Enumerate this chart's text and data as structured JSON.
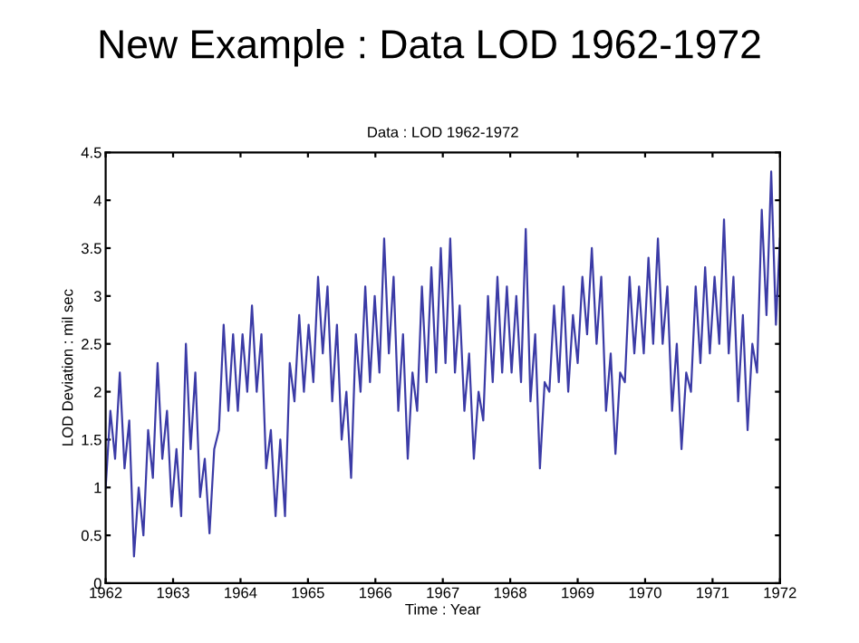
{
  "chart_data": {
    "type": "line",
    "title": "New Example : Data LOD 1962-1972",
    "subtitle": "Data : LOD 1962-1972",
    "xlabel": "Time : Year",
    "ylabel": "LOD Deviation : mil sec",
    "xlim": [
      1962,
      1972
    ],
    "ylim": [
      0,
      4.5
    ],
    "xticks": [
      1962,
      1963,
      1964,
      1965,
      1966,
      1967,
      1968,
      1969,
      1970,
      1971,
      1972
    ],
    "yticks": [
      0,
      0.5,
      1,
      1.5,
      2,
      2.5,
      3,
      3.5,
      4,
      4.5
    ],
    "grid": false,
    "legend": false,
    "series": [
      {
        "color": "#3b3ba6",
        "x": [
          1962.0,
          1962.07,
          1962.14,
          1962.21,
          1962.28,
          1962.35,
          1962.42,
          1962.49,
          1962.56,
          1962.63,
          1962.7,
          1962.77,
          1962.84,
          1962.91,
          1962.98,
          1963.05,
          1963.12,
          1963.19,
          1963.26,
          1963.33,
          1963.4,
          1963.47,
          1963.54,
          1963.61,
          1963.68,
          1963.75,
          1963.82,
          1963.89,
          1963.96,
          1964.03,
          1964.1,
          1964.17,
          1964.24,
          1964.31,
          1964.38,
          1964.45,
          1964.52,
          1964.59,
          1964.66,
          1964.73,
          1964.8,
          1964.87,
          1964.94,
          1965.01,
          1965.08,
          1965.15,
          1965.22,
          1965.29,
          1965.36,
          1965.43,
          1965.5,
          1965.57,
          1965.64,
          1965.71,
          1965.78,
          1965.85,
          1965.92,
          1965.99,
          1966.06,
          1966.13,
          1966.2,
          1966.27,
          1966.34,
          1966.41,
          1966.48,
          1966.55,
          1966.62,
          1966.69,
          1966.76,
          1966.83,
          1966.9,
          1966.97,
          1967.04,
          1967.11,
          1967.18,
          1967.25,
          1967.32,
          1967.39,
          1967.46,
          1967.53,
          1967.6,
          1967.67,
          1967.74,
          1967.81,
          1967.88,
          1967.95,
          1968.02,
          1968.09,
          1968.16,
          1968.23,
          1968.3,
          1968.37,
          1968.44,
          1968.51,
          1968.58,
          1968.65,
          1968.72,
          1968.79,
          1968.86,
          1968.93,
          1969.0,
          1969.07,
          1969.14,
          1969.21,
          1969.28,
          1969.35,
          1969.42,
          1969.49,
          1969.56,
          1969.63,
          1969.7,
          1969.77,
          1969.84,
          1969.91,
          1969.98,
          1970.05,
          1970.12,
          1970.19,
          1970.26,
          1970.33,
          1970.4,
          1970.47,
          1970.54,
          1970.61,
          1970.68,
          1970.75,
          1970.82,
          1970.89,
          1970.96,
          1971.03,
          1971.1,
          1971.17,
          1971.24,
          1971.31,
          1971.38,
          1971.45,
          1971.52,
          1971.59,
          1971.66,
          1971.73,
          1971.8,
          1971.87,
          1971.94,
          1972.0
        ],
        "values": [
          1.0,
          1.8,
          1.3,
          2.2,
          1.2,
          1.7,
          0.28,
          1.0,
          0.5,
          1.6,
          1.1,
          2.3,
          1.3,
          1.8,
          0.8,
          1.4,
          0.7,
          2.5,
          1.4,
          2.2,
          0.9,
          1.3,
          0.52,
          1.4,
          1.6,
          2.7,
          1.8,
          2.6,
          1.8,
          2.6,
          2.0,
          2.9,
          2.0,
          2.6,
          1.2,
          1.6,
          0.7,
          1.5,
          0.7,
          2.3,
          1.9,
          2.8,
          2.0,
          2.7,
          2.1,
          3.2,
          2.4,
          3.1,
          1.9,
          2.7,
          1.5,
          2.0,
          1.1,
          2.6,
          2.0,
          3.1,
          2.1,
          3.0,
          2.2,
          3.6,
          2.4,
          3.2,
          1.8,
          2.6,
          1.3,
          2.2,
          1.8,
          3.1,
          2.1,
          3.3,
          2.2,
          3.5,
          2.3,
          3.6,
          2.2,
          2.9,
          1.8,
          2.4,
          1.3,
          2.0,
          1.7,
          3.0,
          2.1,
          3.2,
          2.2,
          3.1,
          2.2,
          3.0,
          2.1,
          3.7,
          1.9,
          2.6,
          1.2,
          2.1,
          2.0,
          2.9,
          2.1,
          3.1,
          2.0,
          2.8,
          2.3,
          3.2,
          2.6,
          3.5,
          2.5,
          3.2,
          1.8,
          2.4,
          1.35,
          2.2,
          2.1,
          3.2,
          2.4,
          3.1,
          2.4,
          3.4,
          2.5,
          3.6,
          2.5,
          3.1,
          1.8,
          2.5,
          1.4,
          2.2,
          2.0,
          3.1,
          2.3,
          3.3,
          2.4,
          3.2,
          2.5,
          3.8,
          2.4,
          3.2,
          1.9,
          2.8,
          1.6,
          2.5,
          2.2,
          3.9,
          2.8,
          4.3,
          2.7,
          3.6
        ]
      }
    ]
  }
}
